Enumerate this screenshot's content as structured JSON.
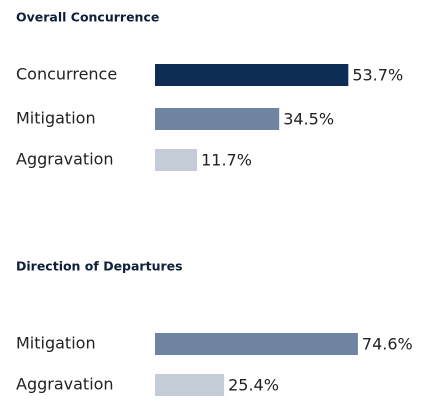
{
  "chart_data": [
    {
      "type": "bar",
      "orientation": "horizontal",
      "title": "Overall Concurrence",
      "categories": [
        "Concurrence",
        "Mitigation",
        "Aggravation"
      ],
      "values": [
        53.7,
        34.5,
        11.7
      ],
      "value_labels": [
        "53.7%",
        "34.5%",
        "11.7%"
      ],
      "colors": [
        "#0d2d55",
        "#6e84a0",
        "#c3ccd7"
      ]
    },
    {
      "type": "bar",
      "orientation": "horizontal",
      "title": "Direction of Departures",
      "categories": [
        "Mitigation",
        "Aggravation"
      ],
      "values": [
        74.6,
        25.4
      ],
      "value_labels": [
        "74.6%",
        "25.4%"
      ],
      "colors": [
        "#6e84a0",
        "#c3ccd7"
      ]
    }
  ]
}
